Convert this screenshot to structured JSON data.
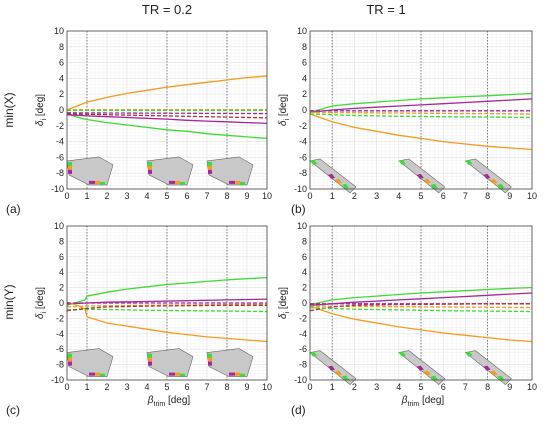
{
  "figure": {
    "col_titles": [
      "TR = 0.2",
      "TR = 1"
    ],
    "row_labels": [
      "min(X)",
      "min(Y)"
    ],
    "panel_labels": [
      "(a)",
      "(b)",
      "(c)",
      "(d)"
    ],
    "ylabel_main": "δ",
    "ylabel_sub": "i",
    "ylabel_unit": " [deg]",
    "xlabel_main": "β",
    "xlabel_sub": "trim",
    "xlabel_unit": " [deg]"
  },
  "colors": {
    "orange": "#F59B1E",
    "green": "#3DDC34",
    "magenta": "#A3289A",
    "darkred": "#B03040",
    "olive": "#7A9A20",
    "wing_fill": "#C8C8C8",
    "grid_major": "#E2E2E2",
    "grid_minor": "#F1F1F1"
  },
  "chart_data": [
    {
      "id": "a",
      "type": "line",
      "xlim": [
        0,
        10
      ],
      "ylim": [
        -10,
        10
      ],
      "xticks": [
        0,
        1,
        2,
        3,
        4,
        5,
        6,
        7,
        8,
        9,
        10
      ],
      "yticks": [
        -10,
        -8,
        -6,
        -4,
        -2,
        0,
        2,
        4,
        6,
        8,
        10
      ],
      "vlines": [
        1,
        5,
        8
      ],
      "series": [
        {
          "color": "orange",
          "dash": false,
          "x": [
            0,
            0.5,
            1,
            2,
            3,
            4,
            5,
            6,
            7,
            8,
            9,
            10
          ],
          "y": [
            0,
            0.5,
            1.0,
            1.6,
            2.1,
            2.5,
            2.9,
            3.2,
            3.5,
            3.8,
            4.1,
            4.3
          ]
        },
        {
          "color": "green",
          "dash": false,
          "x": [
            0,
            0.5,
            1,
            2,
            3,
            4,
            5,
            6,
            7,
            8,
            9,
            10
          ],
          "y": [
            -0.5,
            -0.9,
            -1.2,
            -1.6,
            -1.9,
            -2.2,
            -2.5,
            -2.7,
            -3.0,
            -3.2,
            -3.4,
            -3.6
          ]
        },
        {
          "color": "magenta",
          "dash": false,
          "x": [
            0,
            1,
            2,
            3,
            4,
            5,
            6,
            7,
            8,
            9,
            10
          ],
          "y": [
            -0.6,
            -0.75,
            -0.85,
            -0.95,
            -1.05,
            -1.15,
            -1.3,
            -1.4,
            -1.5,
            -1.6,
            -1.7
          ]
        },
        {
          "color": "orange",
          "dash": true,
          "x": [
            0,
            10
          ],
          "y": [
            0.05,
            0.05
          ]
        },
        {
          "color": "green",
          "dash": true,
          "x": [
            0,
            10
          ],
          "y": [
            -0.05,
            -0.05
          ]
        },
        {
          "color": "darkred",
          "dash": true,
          "x": [
            0,
            1,
            2,
            3,
            4,
            5,
            6,
            7,
            8,
            9,
            10
          ],
          "y": [
            -0.5,
            -0.55,
            -0.6,
            -0.65,
            -0.7,
            -0.75,
            -0.8,
            -0.85,
            -0.9,
            -0.95,
            -1.0
          ]
        },
        {
          "color": "magenta",
          "dash": true,
          "x": [
            0,
            10
          ],
          "y": [
            -0.35,
            -0.45
          ]
        }
      ],
      "insets": "swept"
    },
    {
      "id": "b",
      "type": "line",
      "xlim": [
        0,
        10
      ],
      "ylim": [
        -10,
        10
      ],
      "xticks": [
        0,
        1,
        2,
        3,
        4,
        5,
        6,
        7,
        8,
        9,
        10
      ],
      "yticks": [
        -10,
        -8,
        -6,
        -4,
        -2,
        0,
        2,
        4,
        6,
        8,
        10
      ],
      "vlines": [
        1,
        5,
        8
      ],
      "series": [
        {
          "color": "green",
          "dash": false,
          "x": [
            0,
            0.5,
            1,
            2,
            3,
            4,
            5,
            6,
            7,
            8,
            9,
            10
          ],
          "y": [
            -0.3,
            0.1,
            0.5,
            0.8,
            1.0,
            1.2,
            1.4,
            1.55,
            1.7,
            1.8,
            1.95,
            2.1
          ]
        },
        {
          "color": "magenta",
          "dash": false,
          "x": [
            0,
            1,
            2,
            3,
            4,
            5,
            6,
            7,
            8,
            9,
            10
          ],
          "y": [
            -0.3,
            0.0,
            0.2,
            0.35,
            0.5,
            0.65,
            0.8,
            0.95,
            1.1,
            1.25,
            1.4
          ]
        },
        {
          "color": "orange",
          "dash": false,
          "x": [
            0,
            0.5,
            1,
            2,
            3,
            4,
            5,
            6,
            7,
            8,
            9,
            10
          ],
          "y": [
            -0.5,
            -1.0,
            -1.5,
            -2.2,
            -2.7,
            -3.2,
            -3.6,
            -4.0,
            -4.3,
            -4.6,
            -4.8,
            -5.0
          ]
        },
        {
          "color": "magenta",
          "dash": true,
          "x": [
            0,
            10
          ],
          "y": [
            -0.1,
            -0.1
          ]
        },
        {
          "color": "orange",
          "dash": true,
          "x": [
            0,
            10
          ],
          "y": [
            -0.3,
            -0.5
          ]
        },
        {
          "color": "green",
          "dash": true,
          "x": [
            0,
            1,
            2,
            4,
            6,
            8,
            10
          ],
          "y": [
            -0.5,
            -0.6,
            -0.7,
            -0.8,
            -0.85,
            -0.9,
            -0.95
          ]
        }
      ],
      "insets": "straight"
    },
    {
      "id": "c",
      "type": "line",
      "xlim": [
        0,
        10
      ],
      "ylim": [
        -10,
        10
      ],
      "xticks": [
        0,
        1,
        2,
        3,
        4,
        5,
        6,
        7,
        8,
        9,
        10
      ],
      "yticks": [
        -10,
        -8,
        -6,
        -4,
        -2,
        0,
        2,
        4,
        6,
        8,
        10
      ],
      "vlines": [
        1,
        5,
        8
      ],
      "series": [
        {
          "color": "green",
          "dash": false,
          "x": [
            0,
            0.5,
            0.9,
            1,
            2,
            3,
            4,
            5,
            6,
            7,
            8,
            9,
            10
          ],
          "y": [
            -0.3,
            0.1,
            0.4,
            0.9,
            1.4,
            1.8,
            2.1,
            2.4,
            2.6,
            2.8,
            3.0,
            3.15,
            3.3
          ]
        },
        {
          "color": "magenta",
          "dash": false,
          "x": [
            0,
            1,
            2,
            4,
            6,
            8,
            10
          ],
          "y": [
            -0.1,
            0.0,
            0.1,
            0.2,
            0.3,
            0.4,
            0.5
          ]
        },
        {
          "color": "orange",
          "dash": false,
          "x": [
            0,
            0.5,
            0.9,
            1,
            2,
            3,
            4,
            5,
            6,
            7,
            8,
            9,
            10
          ],
          "y": [
            0.1,
            -0.3,
            -0.8,
            -1.8,
            -2.6,
            -3.0,
            -3.4,
            -3.8,
            -4.1,
            -4.4,
            -4.6,
            -4.8,
            -5.0
          ]
        },
        {
          "color": "magenta",
          "dash": true,
          "x": [
            0,
            10
          ],
          "y": [
            0.0,
            0.0
          ]
        },
        {
          "color": "orange",
          "dash": true,
          "x": [
            0,
            1,
            2,
            4,
            6,
            8,
            10
          ],
          "y": [
            -0.5,
            -0.4,
            -0.35,
            -0.3,
            -0.25,
            -0.2,
            -0.15
          ]
        },
        {
          "color": "green",
          "dash": true,
          "x": [
            0,
            1,
            2,
            4,
            6,
            8,
            10
          ],
          "y": [
            -0.9,
            -0.8,
            -0.85,
            -0.95,
            -1.0,
            -1.05,
            -1.1
          ]
        },
        {
          "color": "darkred",
          "dash": true,
          "x": [
            0,
            1,
            2,
            4,
            6,
            8,
            10
          ],
          "y": [
            -1.0,
            -0.7,
            -0.5,
            -0.4,
            -0.35,
            -0.3,
            -0.3
          ]
        }
      ],
      "insets": "swept"
    },
    {
      "id": "d",
      "type": "line",
      "xlim": [
        0,
        10
      ],
      "ylim": [
        -10,
        10
      ],
      "xticks": [
        0,
        1,
        2,
        3,
        4,
        5,
        6,
        7,
        8,
        9,
        10
      ],
      "yticks": [
        -10,
        -8,
        -6,
        -4,
        -2,
        0,
        2,
        4,
        6,
        8,
        10
      ],
      "vlines": [
        1,
        5,
        8
      ],
      "series": [
        {
          "color": "green",
          "dash": false,
          "x": [
            0,
            0.5,
            1,
            2,
            3,
            4,
            5,
            6,
            7,
            8,
            9,
            10
          ],
          "y": [
            -0.2,
            0.1,
            0.4,
            0.7,
            0.9,
            1.1,
            1.3,
            1.45,
            1.6,
            1.75,
            1.9,
            2.0
          ]
        },
        {
          "color": "magenta",
          "dash": false,
          "x": [
            0,
            1,
            2,
            3,
            4,
            5,
            6,
            7,
            8,
            9,
            10
          ],
          "y": [
            -0.3,
            -0.1,
            0.1,
            0.25,
            0.4,
            0.55,
            0.7,
            0.85,
            1.0,
            1.15,
            1.3
          ]
        },
        {
          "color": "orange",
          "dash": false,
          "x": [
            0,
            0.5,
            1,
            2,
            3,
            4,
            5,
            6,
            7,
            8,
            9,
            10
          ],
          "y": [
            -0.4,
            -0.9,
            -1.4,
            -2.1,
            -2.6,
            -3.1,
            -3.5,
            -3.9,
            -4.2,
            -4.5,
            -4.8,
            -5.0
          ]
        },
        {
          "color": "magenta",
          "dash": true,
          "x": [
            0,
            10
          ],
          "y": [
            -0.1,
            -0.1
          ]
        },
        {
          "color": "orange",
          "dash": true,
          "x": [
            0,
            10
          ],
          "y": [
            -0.4,
            -0.6
          ]
        },
        {
          "color": "darkred",
          "dash": true,
          "x": [
            0,
            1,
            2,
            4,
            6,
            8,
            10
          ],
          "y": [
            -1.0,
            -0.5,
            -0.3,
            -0.2,
            -0.15,
            -0.1,
            -0.1
          ]
        },
        {
          "color": "green",
          "dash": true,
          "x": [
            0,
            1,
            2,
            4,
            6,
            8,
            10
          ],
          "y": [
            -0.6,
            -0.7,
            -0.8,
            -0.9,
            -1.0,
            -1.05,
            -1.1
          ]
        }
      ],
      "insets": "straight"
    }
  ]
}
